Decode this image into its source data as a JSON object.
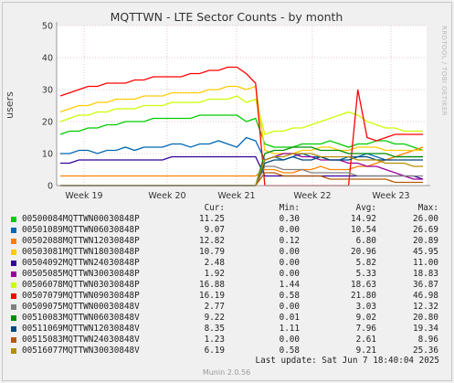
{
  "chart_data": {
    "type": "line",
    "title": "MQTTWN - LTE Sector Counts - by month",
    "ylabel": "users",
    "ylim": [
      0,
      50
    ],
    "yticks": [
      0,
      10,
      20,
      30,
      40,
      50
    ],
    "x_ticks": [
      "Week 19",
      "Week 20",
      "Week 21",
      "Week 22",
      "Week 23"
    ],
    "grid": true,
    "side_label": "RRDTOOL / TOBI OETIKER",
    "series": [
      {
        "name": "00500084MQTTWN00030848P",
        "color": "#00cc00",
        "cur": "11.25",
        "min": "0.30",
        "avg": "14.92",
        "max": "26.00",
        "values": [
          16,
          17,
          17,
          18,
          18,
          19,
          19,
          20,
          20,
          20,
          21,
          21,
          21,
          21,
          21,
          22,
          22,
          22,
          22,
          22,
          20,
          21,
          13,
          12,
          12,
          12,
          13,
          13,
          13,
          14,
          13,
          12,
          13,
          13,
          14,
          14,
          13,
          13,
          12,
          11
        ]
      },
      {
        "name": "00501089MQTTWN06030848P",
        "color": "#0066b3",
        "cur": "9.07",
        "min": "0.00",
        "avg": "10.54",
        "max": "26.69",
        "values": [
          10,
          10,
          11,
          11,
          10,
          11,
          11,
          12,
          11,
          12,
          12,
          12,
          13,
          13,
          12,
          13,
          13,
          14,
          13,
          12,
          15,
          14,
          8,
          9,
          8,
          9,
          10,
          9,
          9,
          8,
          8,
          9,
          9,
          10,
          9,
          8,
          9,
          9,
          9,
          9
        ]
      },
      {
        "name": "00502088MQTTWN12030848P",
        "color": "#ff8000",
        "cur": "12.82",
        "min": "0.12",
        "avg": "6.80",
        "max": "20.89",
        "values": [
          3,
          3,
          3,
          3,
          3,
          3,
          3,
          3,
          3,
          3,
          3,
          3,
          3,
          3,
          3,
          3,
          3,
          3,
          3,
          3,
          3,
          3,
          5,
          5,
          4,
          4,
          5,
          5,
          6,
          5,
          5,
          5,
          6,
          6,
          7,
          8,
          9,
          10,
          11,
          12
        ]
      },
      {
        "name": "00503081MQTTWN18030848P",
        "color": "#ffcc00",
        "cur": "10.79",
        "min": "0.00",
        "avg": "20.96",
        "max": "45.95",
        "values": [
          23,
          24,
          25,
          25,
          26,
          26,
          27,
          27,
          27,
          28,
          28,
          28,
          29,
          29,
          29,
          29,
          30,
          30,
          31,
          31,
          30,
          31,
          11,
          10,
          10,
          10,
          11,
          11,
          12,
          12,
          11,
          11,
          12,
          12,
          12,
          11,
          11,
          11,
          11,
          11
        ]
      },
      {
        "name": "00504092MQTTWN24030848P",
        "color": "#330099",
        "cur": "2.48",
        "min": "0.00",
        "avg": "5.82",
        "max": "11.00",
        "values": [
          7,
          7,
          8,
          8,
          8,
          8,
          8,
          8,
          8,
          8,
          8,
          8,
          9,
          9,
          9,
          9,
          9,
          9,
          9,
          9,
          9,
          9,
          3,
          3,
          3,
          3,
          3,
          3,
          3,
          3,
          3,
          3,
          3,
          3,
          3,
          3,
          3,
          3,
          3,
          2
        ]
      },
      {
        "name": "00505085MQTTWN30030848P",
        "color": "#990099",
        "cur": "1.92",
        "min": "0.00",
        "avg": "5.33",
        "max": "18.83",
        "values": [
          0,
          0,
          0,
          0,
          0,
          0,
          0,
          0,
          0,
          0,
          0,
          0,
          0,
          0,
          0,
          0,
          0,
          0,
          0,
          0,
          0,
          0,
          8,
          9,
          10,
          10,
          9,
          9,
          8,
          8,
          8,
          7,
          7,
          6,
          6,
          5,
          4,
          3,
          2,
          2
        ]
      },
      {
        "name": "00506078MQTTWN03030848P",
        "color": "#ccff00",
        "cur": "16.88",
        "min": "1.44",
        "avg": "18.63",
        "max": "36.87",
        "values": [
          20,
          21,
          22,
          22,
          23,
          23,
          24,
          24,
          24,
          25,
          25,
          25,
          26,
          26,
          26,
          26,
          27,
          27,
          27,
          28,
          26,
          27,
          16,
          17,
          17,
          18,
          18,
          19,
          20,
          21,
          22,
          23,
          22,
          20,
          19,
          18,
          18,
          17,
          17,
          17
        ]
      },
      {
        "name": "00507079MQTTWN09030848P",
        "color": "#ff0000",
        "cur": "16.19",
        "min": "0.58",
        "avg": "21.80",
        "max": "46.98",
        "values": [
          28,
          29,
          30,
          31,
          31,
          32,
          32,
          32,
          33,
          33,
          34,
          34,
          34,
          34,
          35,
          35,
          36,
          36,
          37,
          37,
          35,
          32,
          0,
          0,
          0,
          0,
          0,
          0,
          0,
          0,
          0,
          0,
          30,
          15,
          14,
          15,
          16,
          16,
          16,
          16
        ]
      },
      {
        "name": "00509075MQTTWN00030848V",
        "color": "#808080",
        "cur": "2.77",
        "min": "0.00",
        "avg": "3.03",
        "max": "12.32",
        "values": [
          0,
          0,
          0,
          0,
          0,
          0,
          0,
          0,
          0,
          0,
          0,
          0,
          0,
          0,
          0,
          0,
          0,
          0,
          0,
          0,
          0,
          0,
          6,
          6,
          5,
          5,
          5,
          4,
          4,
          4,
          4,
          4,
          3,
          3,
          3,
          3,
          3,
          3,
          3,
          3
        ]
      },
      {
        "name": "00510083MQTTWN06030848V",
        "color": "#008f00",
        "cur": "9.22",
        "min": "0.01",
        "avg": "9.02",
        "max": "20.80",
        "values": [
          0,
          0,
          0,
          0,
          0,
          0,
          0,
          0,
          0,
          0,
          0,
          0,
          0,
          0,
          0,
          0,
          0,
          0,
          0,
          0,
          0,
          0,
          10,
          11,
          11,
          12,
          12,
          12,
          11,
          11,
          11,
          10,
          10,
          10,
          10,
          10,
          9,
          9,
          9,
          9
        ]
      },
      {
        "name": "00511069MQTTWN12030848V",
        "color": "#00487d",
        "cur": "8.35",
        "min": "1.11",
        "avg": "7.96",
        "max": "19.34",
        "values": [
          0,
          0,
          0,
          0,
          0,
          0,
          0,
          0,
          0,
          0,
          0,
          0,
          0,
          0,
          0,
          0,
          0,
          0,
          0,
          0,
          0,
          0,
          7,
          8,
          8,
          9,
          8,
          8,
          9,
          8,
          8,
          8,
          9,
          9,
          8,
          8,
          8,
          8,
          8,
          8
        ]
      },
      {
        "name": "00515083MQTTWN24030848V",
        "color": "#b35a00",
        "cur": "1.23",
        "min": "0.00",
        "avg": "2.61",
        "max": "8.96",
        "values": [
          0,
          0,
          0,
          0,
          0,
          0,
          0,
          0,
          0,
          0,
          0,
          0,
          0,
          0,
          0,
          0,
          0,
          0,
          0,
          0,
          0,
          0,
          4,
          4,
          3,
          3,
          3,
          3,
          3,
          2,
          2,
          2,
          2,
          2,
          2,
          2,
          1,
          1,
          1,
          1
        ]
      },
      {
        "name": "00516077MQTTWN30030848V",
        "color": "#b38f00",
        "cur": "6.19",
        "min": "0.58",
        "avg": "9.21",
        "max": "25.36",
        "values": [
          0,
          0,
          0,
          0,
          0,
          0,
          0,
          0,
          0,
          0,
          0,
          0,
          0,
          0,
          0,
          0,
          0,
          0,
          0,
          0,
          0,
          0,
          8,
          9,
          9,
          10,
          10,
          10,
          9,
          9,
          9,
          9,
          8,
          8,
          8,
          7,
          7,
          7,
          6,
          6
        ]
      }
    ]
  },
  "legend": {
    "col_cur": "Cur:",
    "col_min": "Min:",
    "col_avg": "Avg:",
    "col_max": "Max:"
  },
  "last_update": "Last update: Sat Jun  7 18:40:04 2025",
  "footer": "Munin 2.0.56"
}
